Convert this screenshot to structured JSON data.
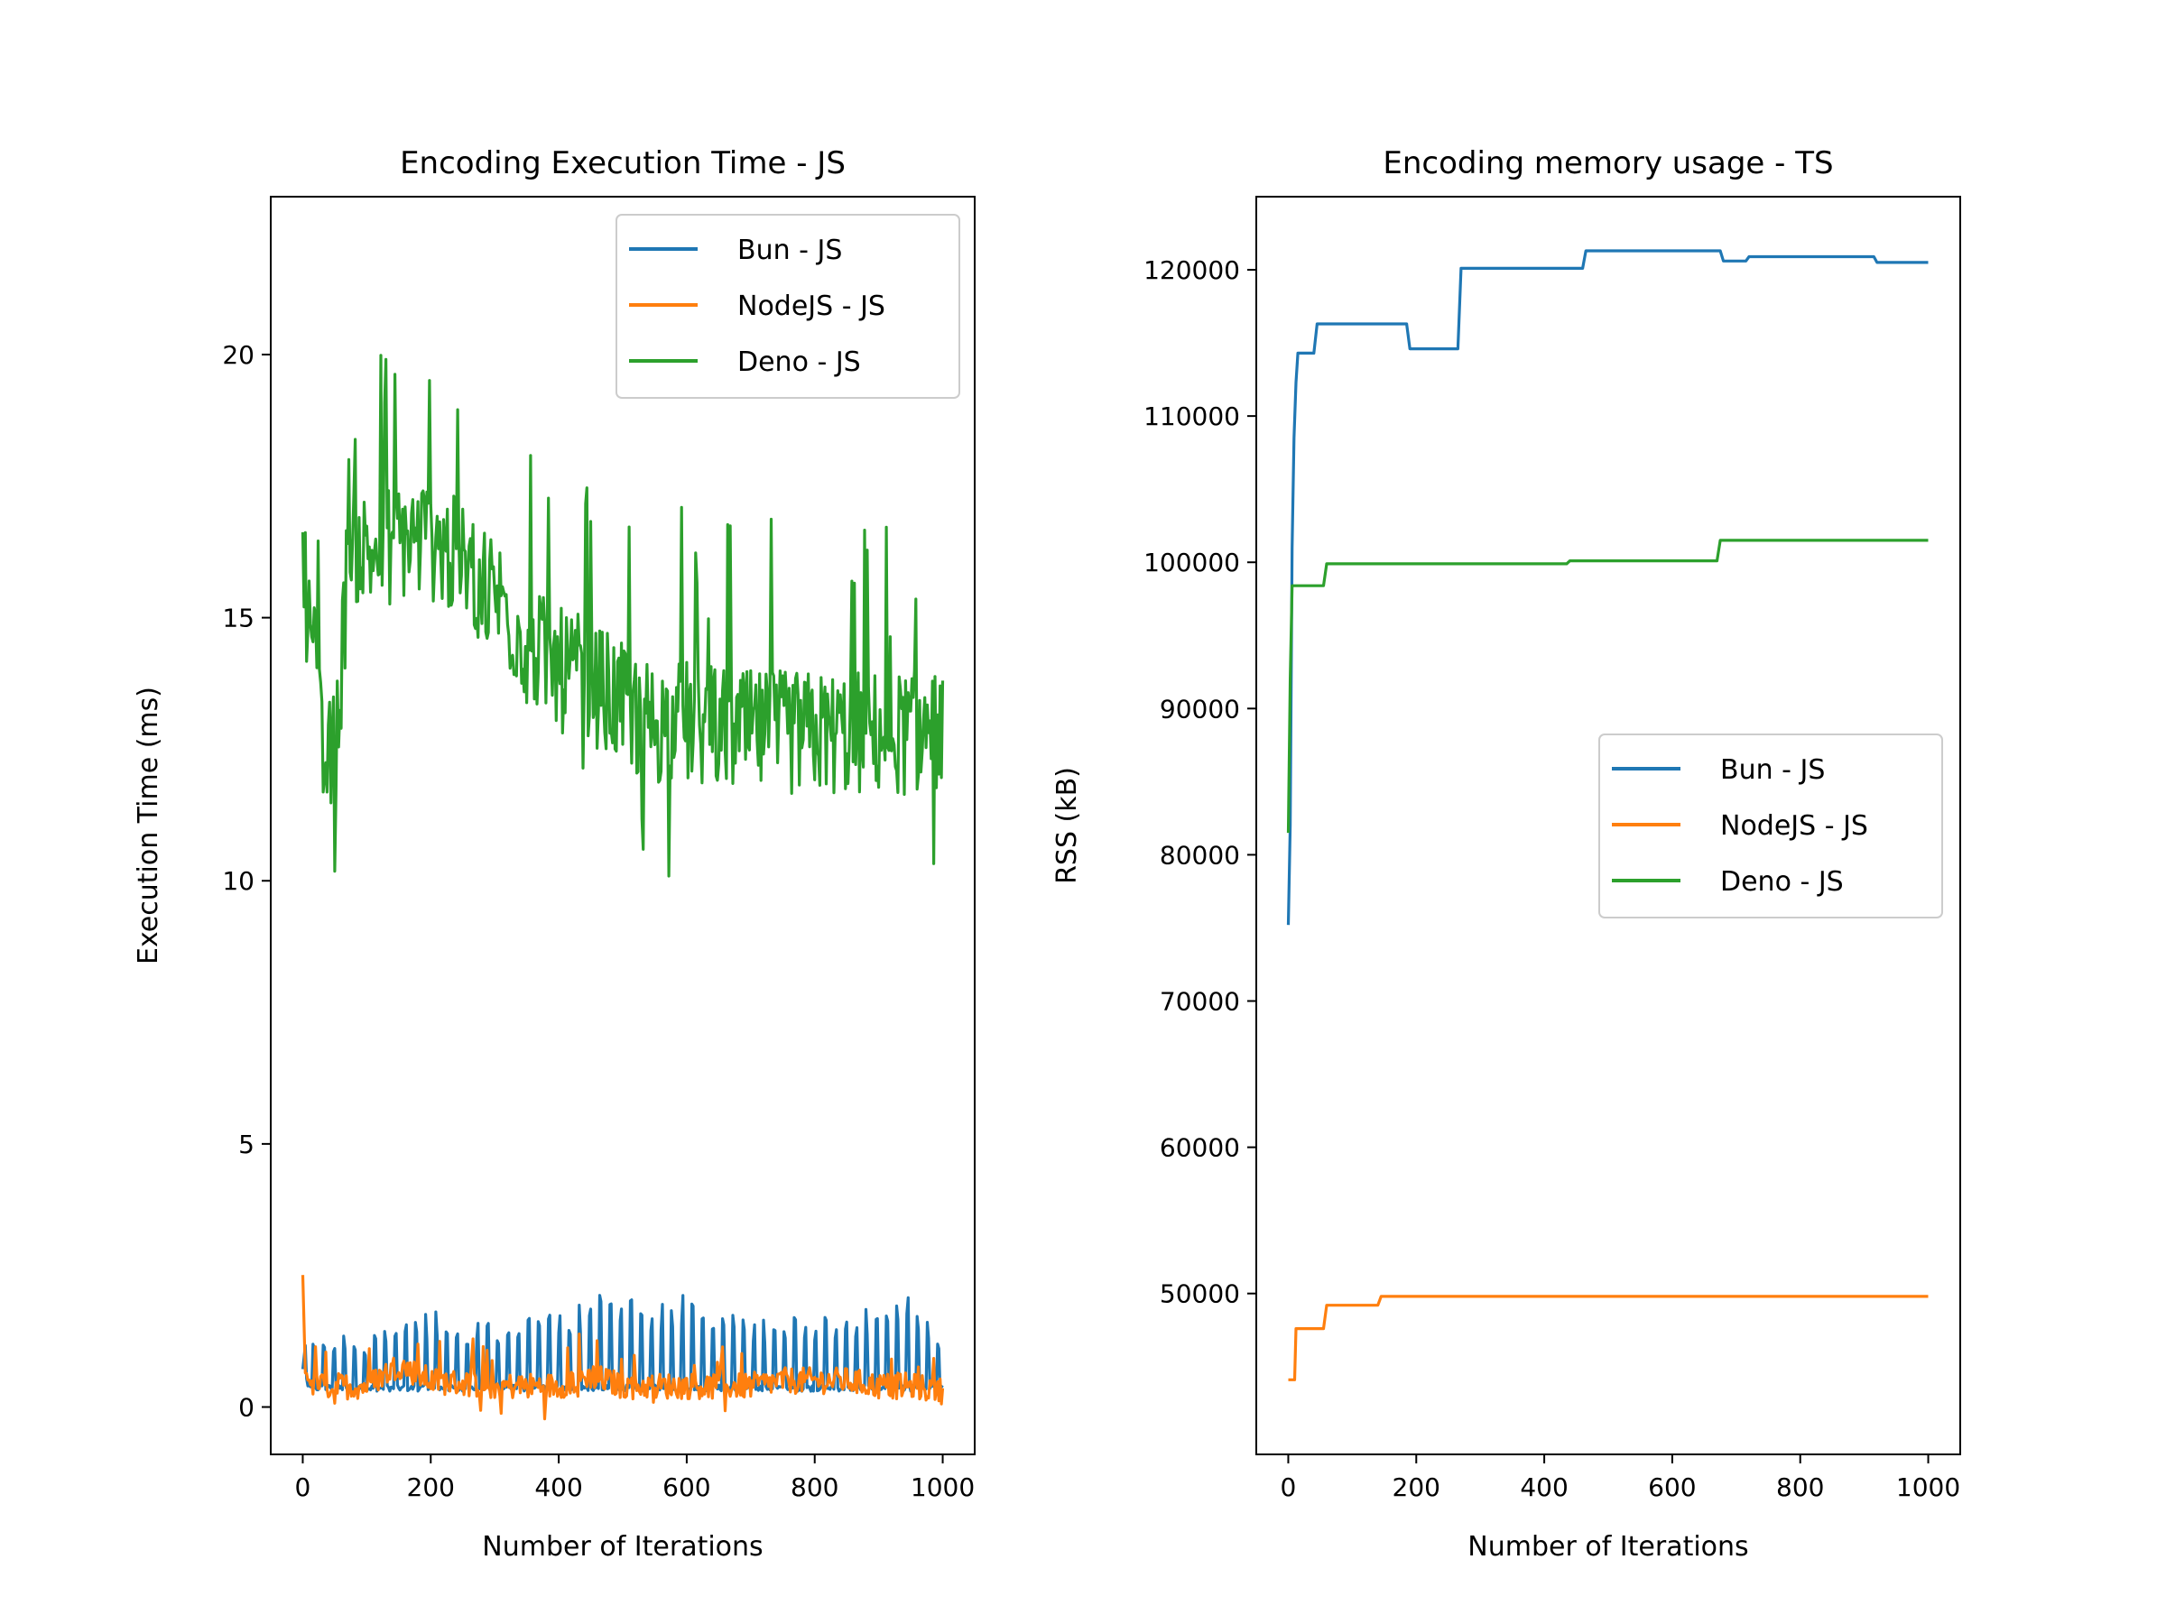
{
  "chart_data": [
    {
      "type": "line",
      "title": "Encoding Execution Time - JS",
      "xlabel": "Number of Iterations",
      "ylabel": "Execution Time (ms)",
      "xlim": [
        -50,
        1050
      ],
      "ylim": [
        -0.9,
        23.0
      ],
      "xticks": [
        "0",
        "200",
        "400",
        "600",
        "800",
        "1000"
      ],
      "yticks": [
        "0",
        "5",
        "10",
        "15",
        "20"
      ],
      "legend_position": "upper right",
      "grid": false,
      "series": [
        {
          "name": "Bun - JS",
          "color": "#1f77b4",
          "style": "spiky",
          "x": [
            0,
            5,
            10,
            15,
            25,
            50,
            100,
            150,
            200,
            250,
            300,
            350,
            400,
            450,
            500,
            550,
            600,
            650,
            700,
            750,
            800,
            850,
            900,
            950,
            1000
          ],
          "base": [
            0.6,
            0.5,
            0.3,
            0.3,
            0.3,
            0.3,
            0.3,
            0.3,
            0.3,
            0.3,
            0.3,
            0.3,
            0.3,
            0.3,
            0.3,
            0.3,
            0.3,
            0.3,
            0.3,
            0.3,
            0.3,
            0.3,
            0.3,
            0.3,
            0.3
          ],
          "peak": [
            0.9,
            1.6,
            2.6,
            1.5,
            1.4,
            1.4,
            1.4,
            1.5,
            1.9,
            1.6,
            1.7,
            1.7,
            1.8,
            2.1,
            2.2,
            2.0,
            2.2,
            1.9,
            1.7,
            1.8,
            1.8,
            1.7,
            2.1,
            2.1,
            1.2
          ]
        },
        {
          "name": "NodeJS - JS",
          "color": "#ff7f0e",
          "style": "noisy",
          "x": [
            0,
            3,
            6,
            10,
            30,
            100,
            150,
            200,
            300,
            400,
            450,
            500,
            600,
            700,
            750,
            800,
            850,
            900,
            950,
            1000
          ],
          "y": [
            2.3,
            1.0,
            0.6,
            0.5,
            0.4,
            0.4,
            0.8,
            0.5,
            0.4,
            0.4,
            0.6,
            0.4,
            0.4,
            0.4,
            0.5,
            0.5,
            0.5,
            0.4,
            0.4,
            0.3
          ],
          "noise": 0.25
        },
        {
          "name": "Deno - JS",
          "color": "#2ca02c",
          "style": "noisy",
          "x": [
            0,
            5,
            10,
            15,
            20,
            30,
            40,
            50,
            60,
            70,
            80,
            100,
            150,
            200,
            250,
            300,
            350,
            400,
            450,
            500,
            550,
            600,
            650,
            700,
            750,
            800,
            850,
            900,
            950,
            1000
          ],
          "y": [
            17.0,
            15.5,
            14.8,
            15.0,
            14.0,
            12.3,
            12.2,
            12.5,
            14.0,
            16.0,
            16.5,
            16.2,
            16.5,
            16.5,
            16.0,
            15.5,
            14.5,
            14.0,
            13.8,
            13.3,
            13.0,
            13.0,
            12.9,
            12.8,
            12.8,
            12.8,
            12.8,
            12.8,
            12.8,
            12.9
          ],
          "noise": 1.2
        }
      ]
    },
    {
      "type": "line",
      "title": "Encoding memory usage - TS",
      "xlabel": "Number of Iterations",
      "ylabel": "RSS (kB)",
      "xlim": [
        -50,
        1050
      ],
      "ylim": [
        39000,
        125000
      ],
      "xticks": [
        "0",
        "200",
        "400",
        "600",
        "800",
        "1000"
      ],
      "yticks": [
        "50000",
        "60000",
        "70000",
        "80000",
        "90000",
        "100000",
        "110000",
        "120000"
      ],
      "legend_position": "center right",
      "grid": false,
      "series": [
        {
          "name": "Bun - JS",
          "color": "#1f77b4",
          "style": "step",
          "x": [
            0,
            3,
            6,
            9,
            12,
            15,
            40,
            45,
            185,
            190,
            265,
            270,
            460,
            465,
            675,
            680,
            715,
            720,
            915,
            920,
            1000
          ],
          "y": [
            75200,
            82000,
            101000,
            108500,
            112300,
            114300,
            114300,
            116300,
            116300,
            114600,
            114600,
            120100,
            120100,
            121300,
            121300,
            120600,
            120600,
            120900,
            120900,
            120500,
            120500
          ]
        },
        {
          "name": "NodeJS - JS",
          "color": "#ff7f0e",
          "style": "step",
          "x": [
            0,
            10,
            12,
            55,
            60,
            140,
            145,
            1000
          ],
          "y": [
            44100,
            44100,
            47600,
            47600,
            49200,
            49200,
            49800,
            49800
          ]
        },
        {
          "name": "Deno - JS",
          "color": "#2ca02c",
          "style": "step",
          "x": [
            0,
            3,
            6,
            8,
            55,
            60,
            435,
            440,
            670,
            675,
            1000
          ],
          "y": [
            81500,
            92000,
            98400,
            98400,
            98400,
            99900,
            99900,
            100100,
            100100,
            101500,
            101500
          ]
        }
      ]
    }
  ]
}
